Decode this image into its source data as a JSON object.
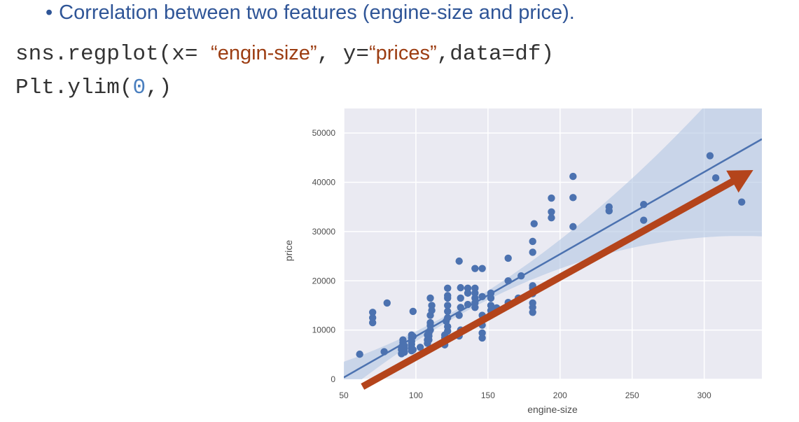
{
  "slide": {
    "bullet": {
      "symbol": "•",
      "text": "Correlation between two features (engine-size and price)."
    },
    "code": {
      "line1": {
        "prefix": "sns.regplot(x=  ",
        "x_arg": "“engin-size”",
        "mid": ",  y=",
        "y_arg": "“prices”",
        "suffix": ",data=df)"
      },
      "line2": {
        "prefix": "Plt.ylim(",
        "num": "0",
        "suffix": ",)"
      }
    }
  },
  "chart_data": {
    "type": "scatter",
    "title": "",
    "xlabel": "engine-size",
    "ylabel": "price",
    "xlim": [
      50,
      340
    ],
    "ylim": [
      0,
      55000
    ],
    "xticks": [
      50,
      100,
      150,
      200,
      250,
      300
    ],
    "yticks": [
      0,
      10000,
      20000,
      30000,
      40000,
      50000
    ],
    "grid": true,
    "background": "#eaeaf2",
    "point_color": "#4c72b0",
    "regression_line": {
      "slope": 166.9,
      "intercept": -7964,
      "ci_color": "#b3c6e2",
      "color": "#4c72b0"
    },
    "annotation_arrow": {
      "color": "#b4441b",
      "from": [
        63,
        -1500
      ],
      "to": [
        334,
        42500
      ]
    },
    "points": [
      [
        61,
        5100
      ],
      [
        70,
        11500
      ],
      [
        70,
        12500
      ],
      [
        70,
        13600
      ],
      [
        78,
        5600
      ],
      [
        80,
        15500
      ],
      [
        90,
        5200
      ],
      [
        90,
        6000
      ],
      [
        90,
        6500
      ],
      [
        91,
        7000
      ],
      [
        91,
        7500
      ],
      [
        91,
        8000
      ],
      [
        92,
        5500
      ],
      [
        92,
        6200
      ],
      [
        92,
        6800
      ],
      [
        97,
        5800
      ],
      [
        97,
        6400
      ],
      [
        97,
        7100
      ],
      [
        97,
        7700
      ],
      [
        97,
        8400
      ],
      [
        97,
        9000
      ],
      [
        98,
        6000
      ],
      [
        98,
        8700
      ],
      [
        98,
        13800
      ],
      [
        103,
        6500
      ],
      [
        108,
        7300
      ],
      [
        108,
        8000
      ],
      [
        108,
        9000
      ],
      [
        109,
        8000
      ],
      [
        109,
        8800
      ],
      [
        109,
        9400
      ],
      [
        110,
        10000
      ],
      [
        110,
        10900
      ],
      [
        110,
        11500
      ],
      [
        110,
        13000
      ],
      [
        111,
        14000
      ],
      [
        111,
        15000
      ],
      [
        110,
        16500
      ],
      [
        120,
        7000
      ],
      [
        120,
        7700
      ],
      [
        120,
        8400
      ],
      [
        120,
        9000
      ],
      [
        122,
        9800
      ],
      [
        122,
        10700
      ],
      [
        121,
        11800
      ],
      [
        122,
        12500
      ],
      [
        122,
        13800
      ],
      [
        122,
        15000
      ],
      [
        122,
        16500
      ],
      [
        122,
        17000
      ],
      [
        122,
        18500
      ],
      [
        130,
        8800
      ],
      [
        131,
        10000
      ],
      [
        130,
        13000
      ],
      [
        131,
        14600
      ],
      [
        131,
        16500
      ],
      [
        131,
        18600
      ],
      [
        130,
        24000
      ],
      [
        136,
        15200
      ],
      [
        136,
        17500
      ],
      [
        136,
        18500
      ],
      [
        141,
        14600
      ],
      [
        141,
        15500
      ],
      [
        141,
        16500
      ],
      [
        141,
        17500
      ],
      [
        141,
        18500
      ],
      [
        141,
        22500
      ],
      [
        146,
        8400
      ],
      [
        146,
        9400
      ],
      [
        146,
        11000
      ],
      [
        146,
        13000
      ],
      [
        146,
        16800
      ],
      [
        146,
        22500
      ],
      [
        152,
        13200
      ],
      [
        152,
        14000
      ],
      [
        152,
        15000
      ],
      [
        152,
        16500
      ],
      [
        152,
        17500
      ],
      [
        156,
        14500
      ],
      [
        164,
        15600
      ],
      [
        164,
        20000
      ],
      [
        164,
        24600
      ],
      [
        171,
        16500
      ],
      [
        173,
        21000
      ],
      [
        181,
        13600
      ],
      [
        181,
        14600
      ],
      [
        181,
        15500
      ],
      [
        181,
        17400
      ],
      [
        181,
        18500
      ],
      [
        181,
        19000
      ],
      [
        181,
        25800
      ],
      [
        181,
        28000
      ],
      [
        182,
        31600
      ],
      [
        194,
        32800
      ],
      [
        194,
        34000
      ],
      [
        194,
        36800
      ],
      [
        209,
        31000
      ],
      [
        209,
        36900
      ],
      [
        209,
        41200
      ],
      [
        234,
        34200
      ],
      [
        234,
        35000
      ],
      [
        258,
        32300
      ],
      [
        258,
        35500
      ],
      [
        304,
        45400
      ],
      [
        308,
        40900
      ],
      [
        326,
        36000
      ]
    ]
  }
}
